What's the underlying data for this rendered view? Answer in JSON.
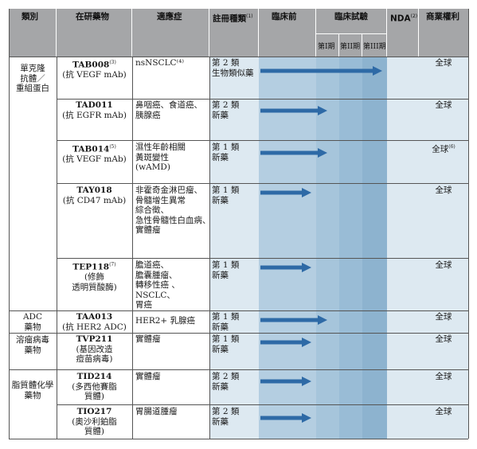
{
  "header": {
    "category": "類別",
    "drug": "在研藥物",
    "indication": "適應症",
    "registration": "註冊種類",
    "registration_note": "(1)",
    "preclinical": "臨床前",
    "clinical": "臨床試驗",
    "phase1": "第I期",
    "phase2": "第II期",
    "phase3": "第III期",
    "nda": "NDA",
    "nda_note": "(2)",
    "rights": "商業權利"
  },
  "categories": [
    {
      "lines": [
        "單克隆",
        "抗體／",
        "重組蛋白"
      ]
    },
    {
      "lines": [
        "ADC",
        "藥物"
      ]
    },
    {
      "lines": [
        "溶瘤病毒",
        "藥物"
      ]
    },
    {
      "lines": [
        "脂質體化學",
        "藥物"
      ]
    }
  ],
  "rows": [
    {
      "code": "TAB008",
      "code_note": "(3)",
      "desc": [
        "(抗 VEGF mAb)"
      ],
      "indication": [
        "nsNSCLC⁽⁴⁾"
      ],
      "registration": [
        "第 2 類",
        "生物類似藥"
      ],
      "stage": "Phase III",
      "rights": "全球",
      "rights_note": ""
    },
    {
      "code": "TAD011",
      "code_note": "",
      "desc": [
        "(抗 EGFR mAb)"
      ],
      "indication": [
        "鼻咽癌、食道癌、",
        "胰腺癌"
      ],
      "registration": [
        "第 2 類",
        "新藥"
      ],
      "stage": "Phase I",
      "rights": "全球",
      "rights_note": ""
    },
    {
      "code": "TAB014",
      "code_note": "(5)",
      "desc": [
        "(抗 VEGF mAb)"
      ],
      "indication": [
        "濕性年齡相關",
        "黃斑變性",
        "(wAMD)"
      ],
      "registration": [
        "第 1 類",
        "新藥"
      ],
      "stage": "Phase I",
      "rights": "全球",
      "rights_note": "(6)"
    },
    {
      "code": "TAY018",
      "code_note": "",
      "desc": [
        "(抗 CD47 mAb)"
      ],
      "indication": [
        "非霍奇金淋巴瘤、",
        "骨髓增生異常",
        "綜合徵、",
        "急性骨髓性白血病、",
        "實體瘤"
      ],
      "registration": [
        "第 1 類",
        "新藥"
      ],
      "stage": "Preclinical",
      "rights": "全球",
      "rights_note": ""
    },
    {
      "code": "TEP118",
      "code_note": "(7)",
      "desc": [
        "(修飾",
        "透明質酸酶)"
      ],
      "indication": [
        "膽道癌、",
        "膽囊腫瘤、",
        "轉移性癌 、",
        "NSCLC、",
        "胃癌"
      ],
      "registration": [
        "第 1 類",
        "新藥"
      ],
      "stage": "Preclinical",
      "rights": "全球",
      "rights_note": ""
    },
    {
      "code": "TAA013",
      "code_note": "",
      "desc": [
        "(抗 HER2 ADC)"
      ],
      "indication": [
        "HER2+ 乳腺癌"
      ],
      "registration": [
        "第 1 類",
        "新藥"
      ],
      "stage": "Phase I",
      "rights": "全球",
      "rights_note": ""
    },
    {
      "code": "TVP211",
      "code_note": "",
      "desc": [
        "(基因改造",
        "痘苗病毒)"
      ],
      "indication": [
        "實體瘤"
      ],
      "registration": [
        "第 1 類",
        "新藥"
      ],
      "stage": "Preclinical",
      "rights": "全球",
      "rights_note": ""
    },
    {
      "code": "TID214",
      "code_note": "",
      "desc": [
        "(多西他賽脂",
        "質體)"
      ],
      "indication": [
        "實體瘤"
      ],
      "registration": [
        "第 2 類",
        "新藥"
      ],
      "stage": "Preclinical",
      "rights": "全球",
      "rights_note": ""
    },
    {
      "code": "TIO217",
      "code_note": "",
      "desc": [
        "(奧沙利鉑脂",
        "質體)"
      ],
      "indication": [
        "胃腸道腫瘤"
      ],
      "registration": [
        "第 2 類",
        "新藥"
      ],
      "stage": "Preclinical",
      "rights": "全球",
      "rights_note": ""
    }
  ],
  "colors": {
    "header_gray": "#a5a6a8",
    "band_light": "#dde9f1",
    "band_mid": "#c2d8e7",
    "band_mid2": "#a9c7dc",
    "band_dark": "#8fb4cf",
    "nda_band": "#dde9f1",
    "arrow": "#2e6aa6"
  }
}
